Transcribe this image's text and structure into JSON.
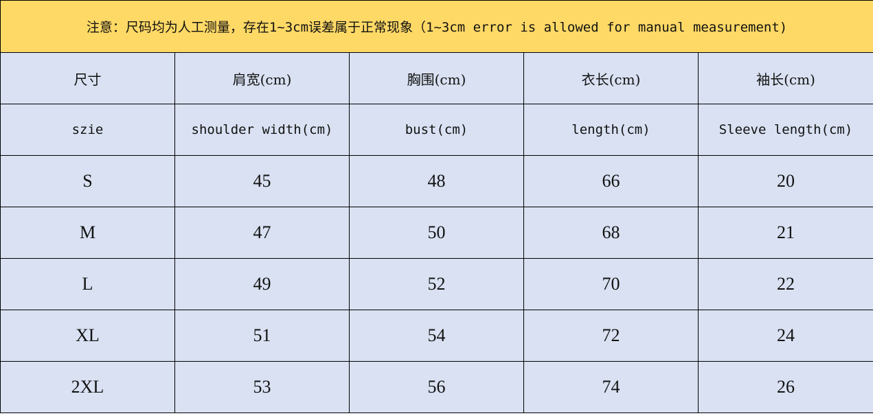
{
  "note": "注意：尺码均为人工测量，存在1~3cm误差属于正常现象（1~3cm error is allowed for manual measurement)",
  "colors": {
    "note_bg": "#FFD966",
    "cell_bg": "#D9E1F2"
  },
  "headers_zh": [
    "尺寸",
    "肩宽(cm)",
    "胸围(cm)",
    "衣长(cm)",
    "袖长(cm)"
  ],
  "headers_en": [
    "szie",
    "shoulder width(cm)",
    "bust(cm)",
    "length(cm)",
    "Sleeve length(cm)"
  ],
  "rows": [
    [
      "S",
      "45",
      "48",
      "66",
      "20"
    ],
    [
      "M",
      "47",
      "50",
      "68",
      "21"
    ],
    [
      "L",
      "49",
      "52",
      "70",
      "22"
    ],
    [
      "XL",
      "51",
      "54",
      "72",
      "24"
    ],
    [
      "2XL",
      "53",
      "56",
      "74",
      "26"
    ]
  ]
}
